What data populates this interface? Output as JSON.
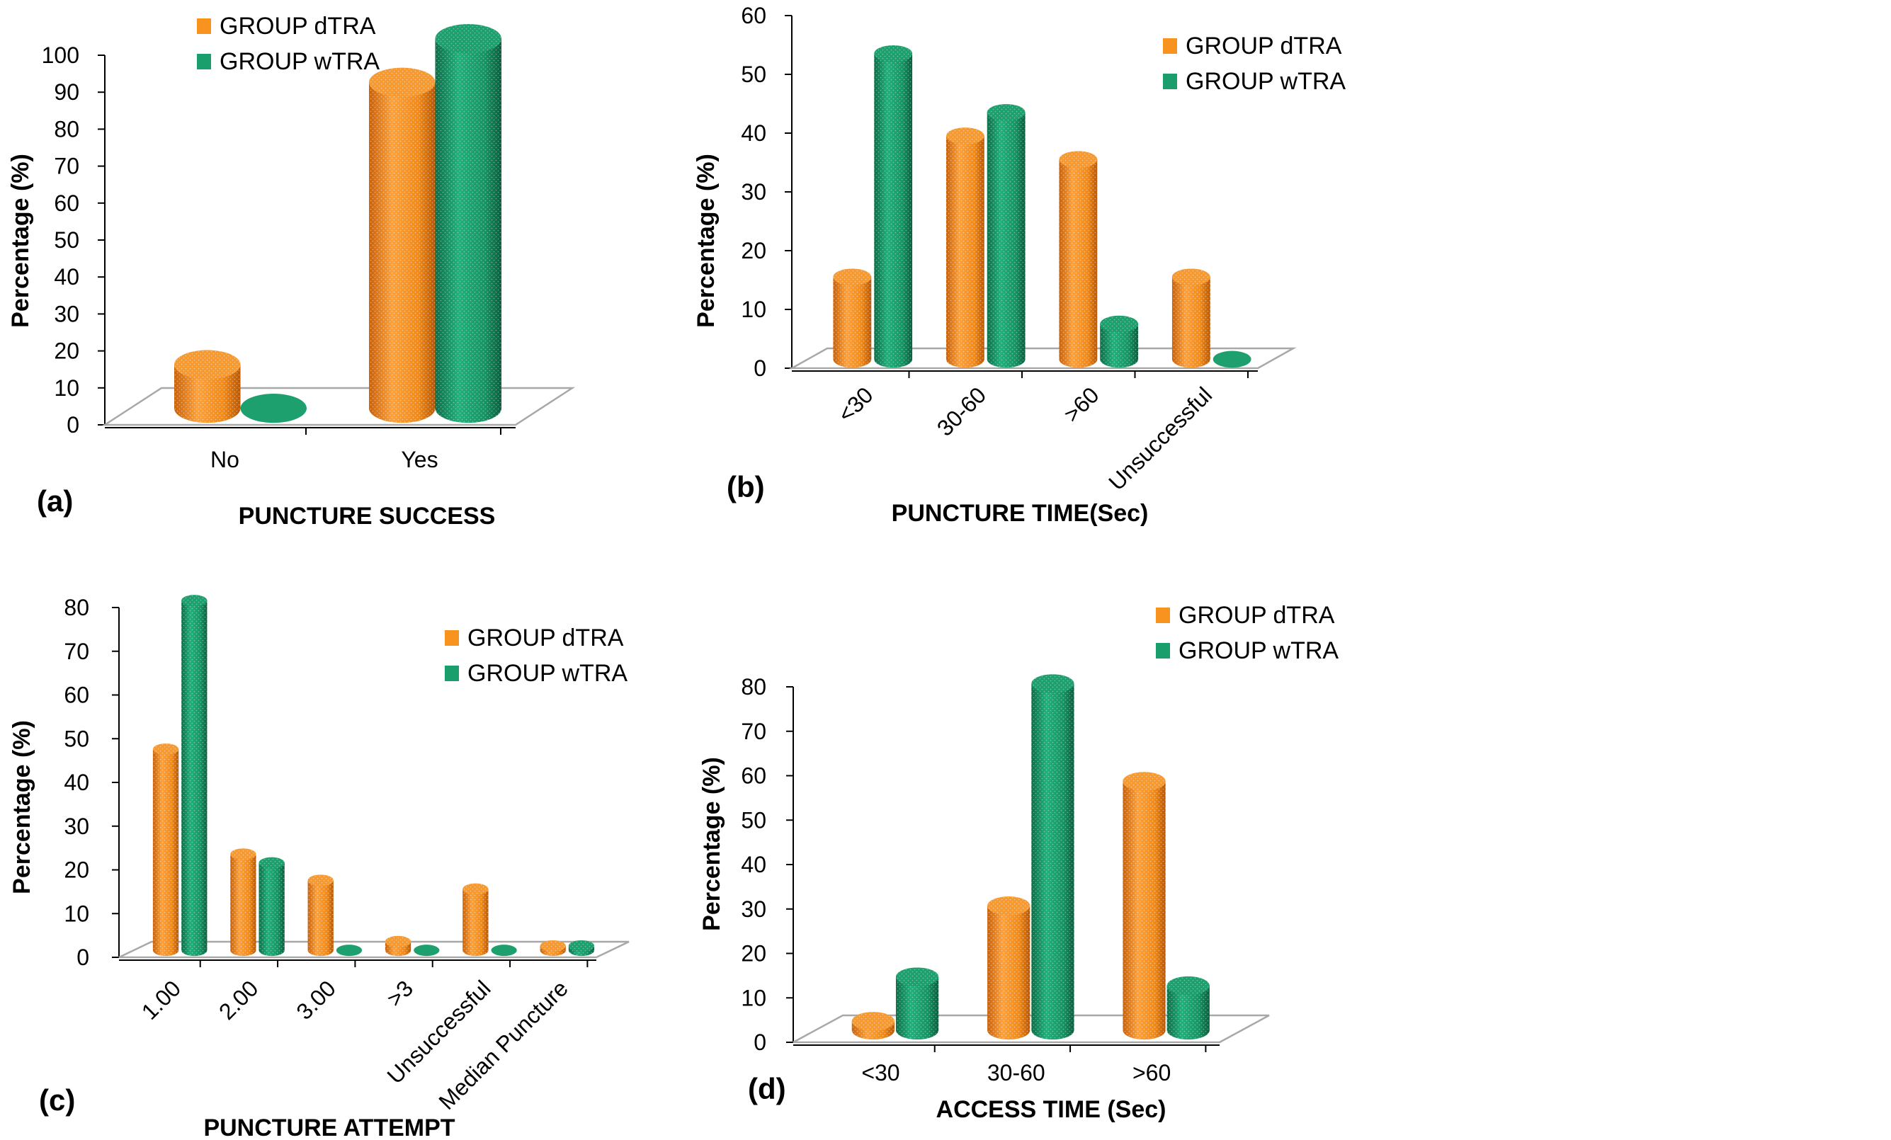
{
  "colors": {
    "dtra": "#F7931E",
    "wtra": "#1A9E6C"
  },
  "chart_data": [
    {
      "id": "a",
      "panel_label": "(a)",
      "type": "bar",
      "title": "",
      "xlabel": "PUNCTURE SUCCESS",
      "ylabel": "Percentage (%)",
      "categories": [
        "No",
        "Yes"
      ],
      "series": [
        {
          "name": "GROUP dTRA",
          "values": [
            11.8,
            88.2
          ]
        },
        {
          "name": "GROUP wTRA",
          "values": [
            0,
            100
          ]
        }
      ],
      "ylim": [
        0,
        100
      ],
      "ticks": [
        0,
        10,
        20,
        30,
        40,
        50,
        60,
        70,
        80,
        90,
        100
      ],
      "legend": "top-left"
    },
    {
      "id": "b",
      "panel_label": "(b)",
      "type": "bar",
      "title": "",
      "xlabel": "PUNCTURE TIME(Sec)",
      "ylabel": "Percentage (%)",
      "categories": [
        "<30",
        "30-60",
        ">60",
        "Unsuccessful"
      ],
      "series": [
        {
          "name": "GROUP dTRA",
          "values": [
            14,
            38,
            34,
            14
          ]
        },
        {
          "name": "GROUP wTRA",
          "values": [
            52,
            42,
            6,
            0
          ]
        }
      ],
      "ylim": [
        0,
        60
      ],
      "ticks": [
        0,
        10,
        20,
        30,
        40,
        50,
        60
      ],
      "legend": "top-right"
    },
    {
      "id": "c",
      "panel_label": "(c)",
      "type": "bar",
      "title": "",
      "xlabel": "PUNCTURE ATTEMPT",
      "ylabel": "Percentage (%)",
      "categories": [
        "1.00",
        "2.00",
        "3.00",
        ">3",
        "Unsuccessful",
        "Median Puncture"
      ],
      "series": [
        {
          "name": "GROUP dTRA",
          "values": [
            46,
            22,
            16,
            2,
            14,
            1
          ]
        },
        {
          "name": "GROUP wTRA",
          "values": [
            80,
            20,
            0,
            0,
            0,
            1
          ]
        }
      ],
      "ylim": [
        0,
        80
      ],
      "ticks": [
        0,
        10,
        20,
        30,
        40,
        50,
        60,
        70,
        80
      ],
      "legend": "top-right"
    },
    {
      "id": "d",
      "panel_label": "(d)",
      "type": "bar",
      "title": "",
      "xlabel": "ACCESS TIME (Sec)",
      "ylabel": "Percentage (%)",
      "categories": [
        "<30",
        "30-60",
        ">60"
      ],
      "series": [
        {
          "name": "GROUP dTRA",
          "values": [
            2,
            28,
            56
          ]
        },
        {
          "name": "GROUP wTRA",
          "values": [
            12,
            78,
            10
          ]
        }
      ],
      "ylim": [
        0,
        80
      ],
      "ticks": [
        0,
        10,
        20,
        30,
        40,
        50,
        60,
        70,
        80
      ],
      "legend": "top-right"
    }
  ]
}
